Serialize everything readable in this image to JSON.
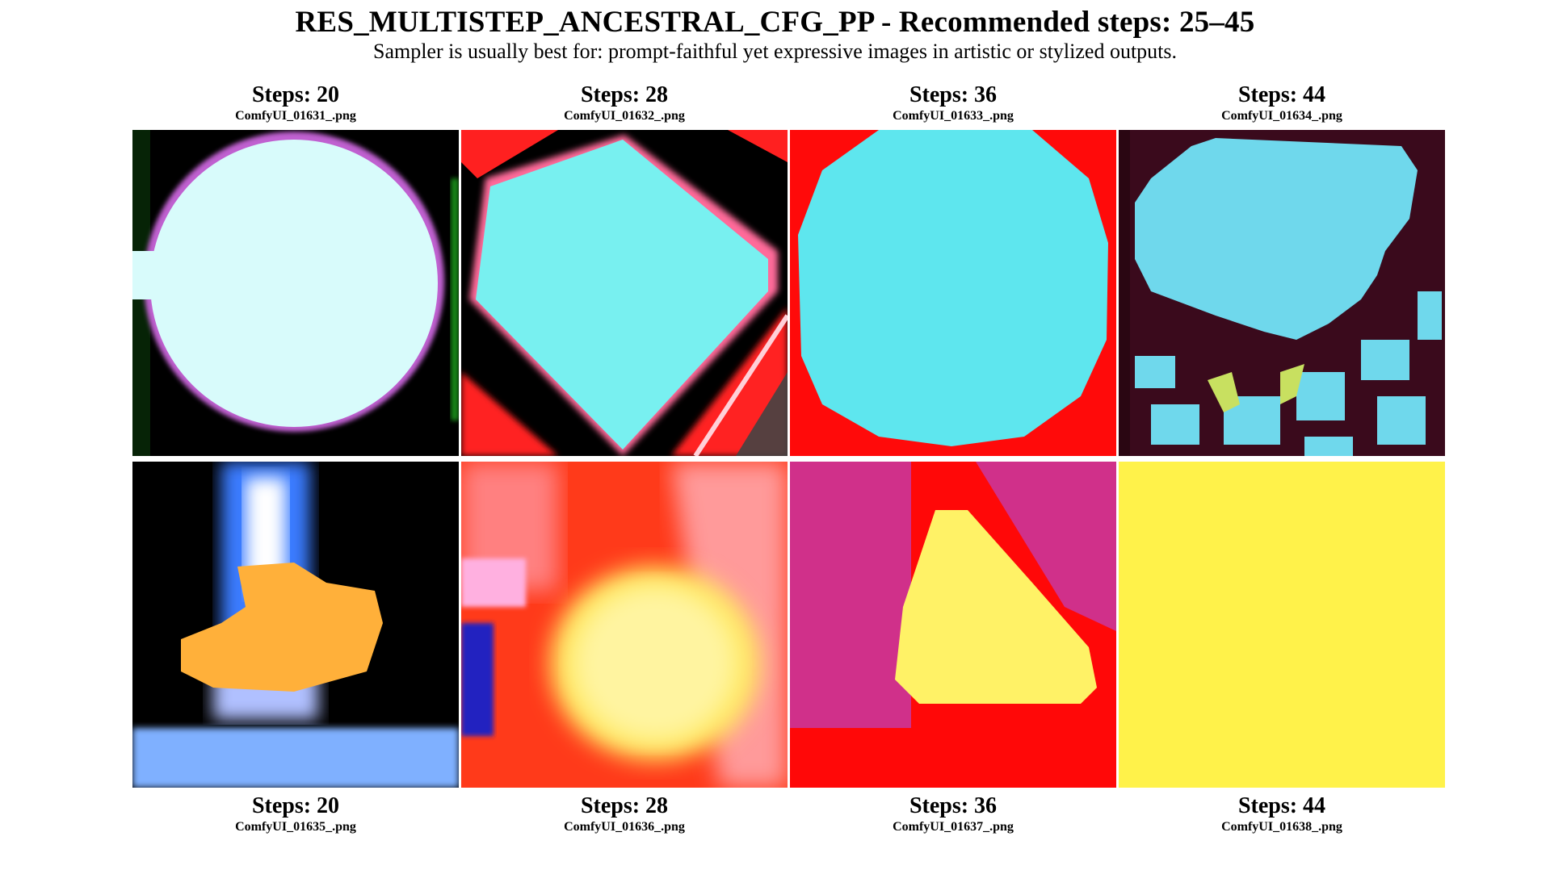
{
  "header": {
    "title": "RES_MULTISTEP_ANCESTRAL_CFG_PP - Recommended steps: 25–45",
    "subtitle": "Sampler is usually best for: prompt-faithful yet expressive images in artistic or stylized outputs."
  },
  "grid": {
    "top_row": [
      {
        "steps_label": "Steps: 20",
        "filename": "ComfyUI_01631_.png"
      },
      {
        "steps_label": "Steps: 28",
        "filename": "ComfyUI_01632_.png"
      },
      {
        "steps_label": "Steps: 36",
        "filename": "ComfyUI_01633_.png"
      },
      {
        "steps_label": "Steps: 44",
        "filename": "ComfyUI_01634_.png"
      }
    ],
    "bottom_row": [
      {
        "steps_label": "Steps: 20",
        "filename": "ComfyUI_01635_.png"
      },
      {
        "steps_label": "Steps: 28",
        "filename": "ComfyUI_01636_.png"
      },
      {
        "steps_label": "Steps: 36",
        "filename": "ComfyUI_01637_.png"
      },
      {
        "steps_label": "Steps: 44",
        "filename": "ComfyUI_01638_.png"
      }
    ]
  },
  "colors": {
    "black": "#000000",
    "cyan": "#6ff0ee",
    "pale_cyan": "#d8fbfb",
    "magenta_rim": "#c060d0",
    "red": "#ff1010",
    "dark_maroon": "#3a0a1c",
    "yellow": "#fff266",
    "orange": "#ffb03a",
    "blue": "#3a7cff",
    "pink": "#e0307a"
  }
}
